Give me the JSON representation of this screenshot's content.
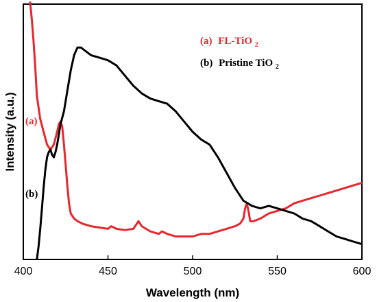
{
  "chart_data": {
    "type": "line",
    "xlabel": "Wavelength (nm)",
    "ylabel": "Intensity (a.u.)",
    "xlim": [
      400,
      600
    ],
    "ylim": [
      0,
      1
    ],
    "x_ticks": [
      "400",
      "450",
      "500",
      "550",
      "600"
    ],
    "grid": false,
    "legend_position": "top-right",
    "legend": {
      "a_prefix": "(a)",
      "a_text": "FL-TiO",
      "a_sub": "2",
      "b_prefix": "(b)",
      "b_text": "Pristine TiO",
      "b_sub": "2"
    },
    "curve_labels": {
      "a": "(a)",
      "b": "(b)"
    },
    "series": [
      {
        "label": "(a)",
        "color": "#e8262d",
        "x": [
          404,
          405,
          406,
          407,
          408,
          410,
          412,
          414,
          416,
          418,
          420,
          421,
          422,
          423,
          424,
          425,
          426,
          427,
          428,
          430,
          432,
          435,
          440,
          445,
          450,
          452,
          455,
          460,
          465,
          467,
          468,
          470,
          475,
          480,
          482,
          485,
          490,
          495,
          500,
          505,
          510,
          515,
          520,
          525,
          528,
          530,
          531,
          532,
          533,
          534,
          536,
          540,
          545,
          550,
          555,
          560,
          565,
          570,
          575,
          580,
          585,
          590,
          595,
          600
        ],
        "y": [
          1.01,
          0.94,
          0.86,
          0.76,
          0.64,
          0.55,
          0.5,
          0.45,
          0.43,
          0.45,
          0.5,
          0.53,
          0.54,
          0.52,
          0.45,
          0.37,
          0.29,
          0.22,
          0.18,
          0.16,
          0.15,
          0.14,
          0.13,
          0.125,
          0.12,
          0.13,
          0.12,
          0.115,
          0.12,
          0.14,
          0.15,
          0.13,
          0.11,
          0.1,
          0.11,
          0.1,
          0.09,
          0.09,
          0.09,
          0.1,
          0.1,
          0.11,
          0.12,
          0.13,
          0.14,
          0.16,
          0.2,
          0.22,
          0.19,
          0.15,
          0.15,
          0.16,
          0.18,
          0.19,
          0.2,
          0.22,
          0.23,
          0.24,
          0.25,
          0.26,
          0.27,
          0.28,
          0.29,
          0.3
        ]
      },
      {
        "label": "(b)",
        "color": "#000000",
        "x": [
          408,
          409,
          410,
          411,
          412,
          413,
          414,
          415,
          416,
          417,
          418,
          419,
          420,
          421,
          422,
          424,
          426,
          428,
          430,
          432,
          434,
          436,
          440,
          445,
          450,
          455,
          460,
          465,
          470,
          475,
          480,
          485,
          490,
          495,
          500,
          505,
          510,
          515,
          520,
          525,
          530,
          535,
          540,
          545,
          550,
          555,
          560,
          565,
          570,
          575,
          580,
          585,
          590,
          595,
          600
        ],
        "y": [
          0.0,
          0.05,
          0.12,
          0.2,
          0.28,
          0.35,
          0.4,
          0.42,
          0.43,
          0.41,
          0.4,
          0.42,
          0.45,
          0.49,
          0.53,
          0.58,
          0.66,
          0.74,
          0.8,
          0.83,
          0.83,
          0.82,
          0.8,
          0.79,
          0.78,
          0.76,
          0.72,
          0.68,
          0.65,
          0.63,
          0.62,
          0.61,
          0.58,
          0.54,
          0.5,
          0.47,
          0.45,
          0.4,
          0.34,
          0.28,
          0.23,
          0.21,
          0.2,
          0.21,
          0.2,
          0.19,
          0.18,
          0.16,
          0.15,
          0.13,
          0.11,
          0.09,
          0.08,
          0.07,
          0.06
        ]
      }
    ]
  }
}
